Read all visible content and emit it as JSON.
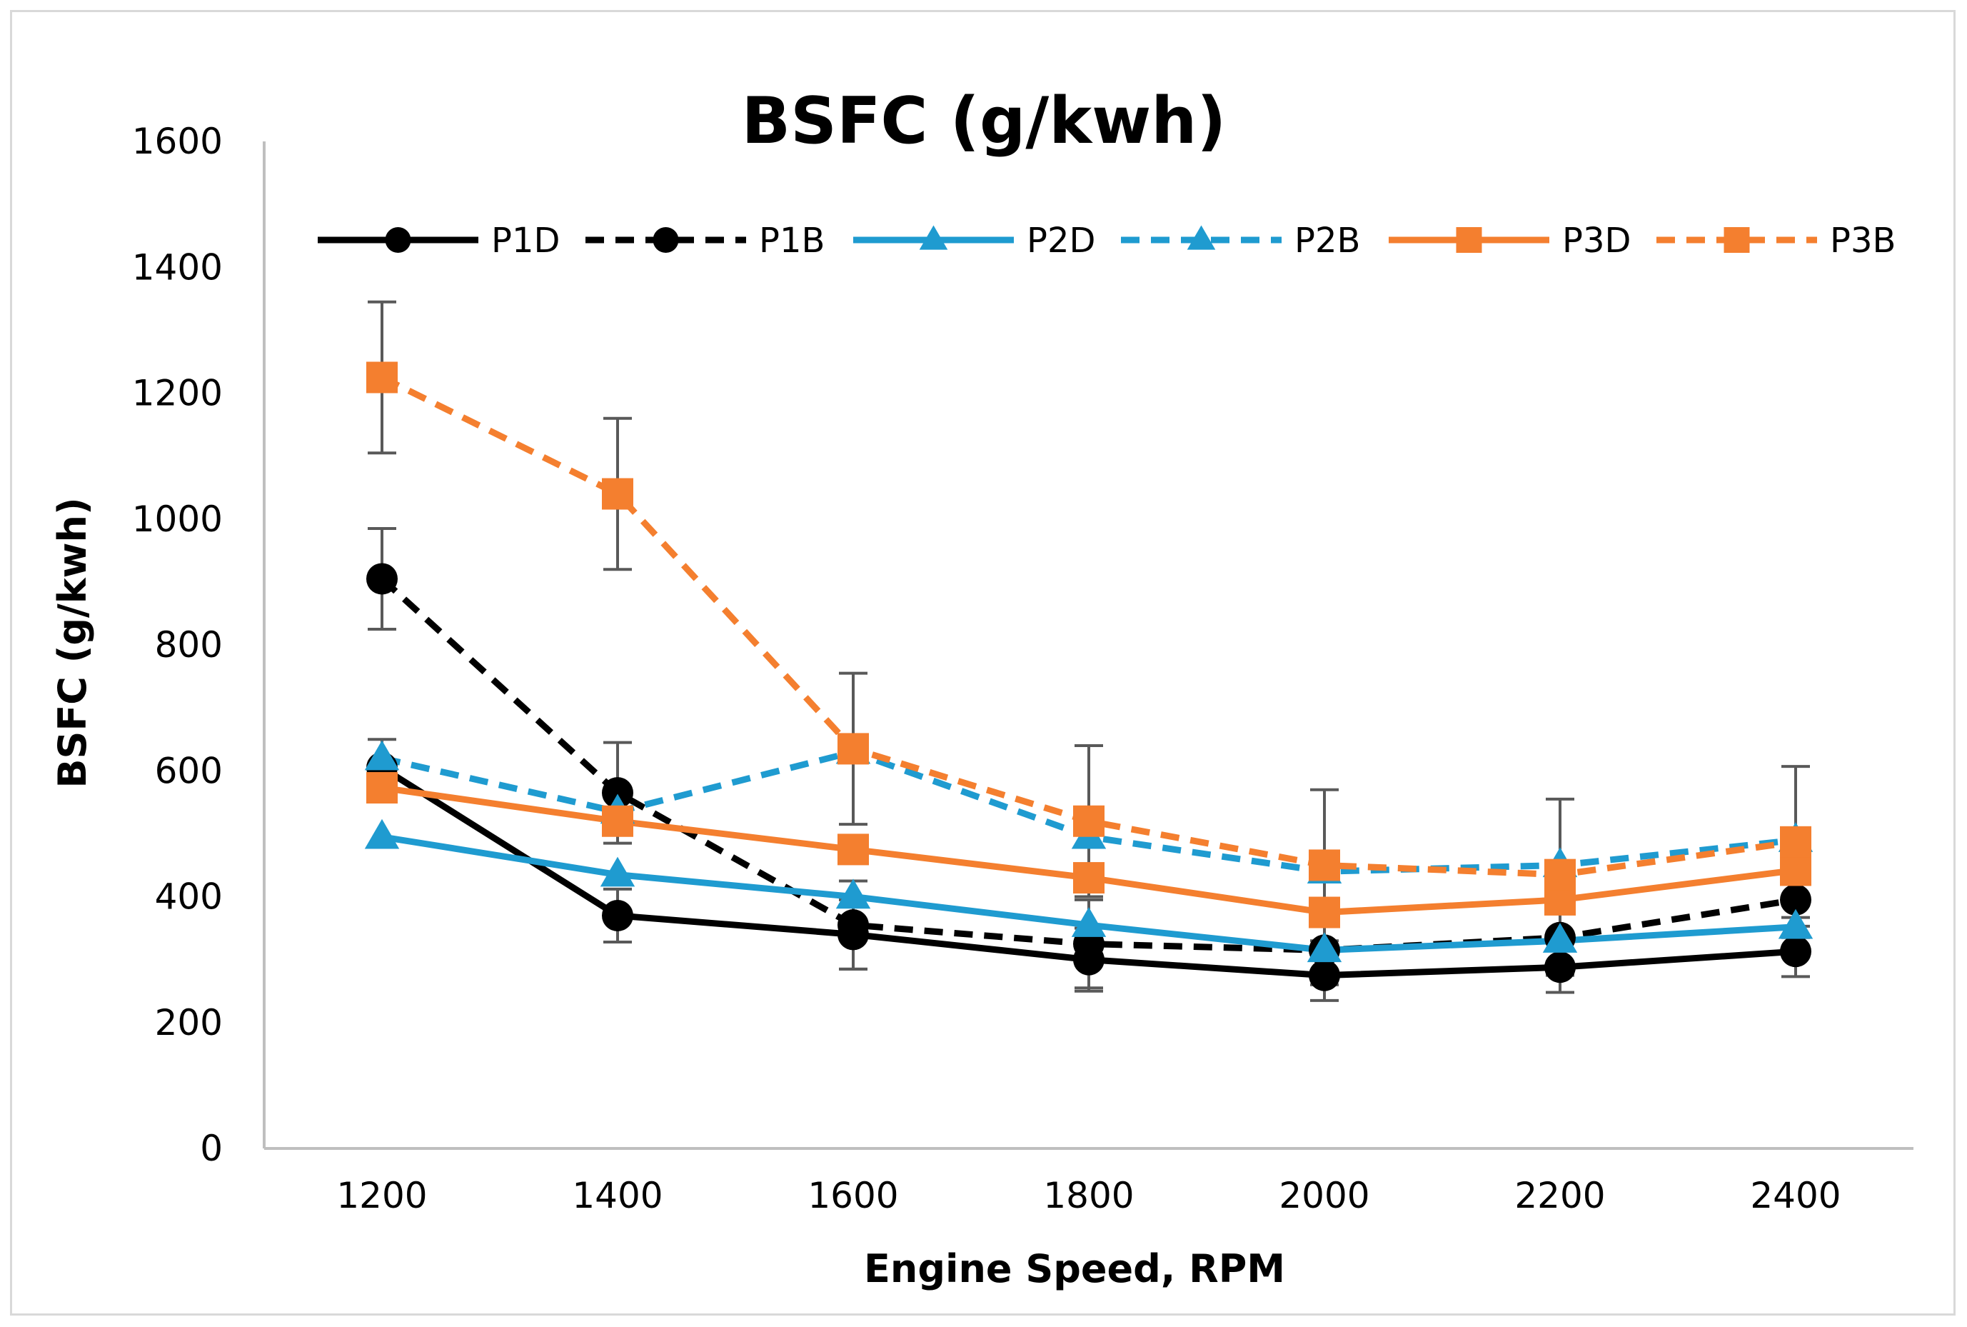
{
  "chart_data": {
    "type": "line",
    "title": "BSFC (g/kwh)",
    "xlabel": "Engine Speed, RPM",
    "ylabel": "BSFC (g/kwh)",
    "categories": [
      "1200",
      "1400",
      "1600",
      "1800",
      "2000",
      "2200",
      "2400"
    ],
    "ylim": [
      0,
      1600
    ],
    "yticks": [
      "0",
      "200",
      "400",
      "600",
      "800",
      "1000",
      "1200",
      "1400",
      "1600"
    ],
    "grid": false,
    "legend_position": "top",
    "series": [
      {
        "name": "P1D",
        "color": "#000000",
        "dash": "solid",
        "marker": "circle",
        "values": [
          605,
          370,
          340,
          300,
          275,
          288,
          313
        ],
        "errors": [
          45,
          42,
          55,
          50,
          40,
          40,
          40
        ]
      },
      {
        "name": "P1B",
        "color": "#000000",
        "dash": "dashed",
        "marker": "circle",
        "values": [
          905,
          565,
          355,
          325,
          315,
          335,
          395
        ],
        "errors": [
          80,
          80,
          70,
          70,
          55,
          60,
          60
        ]
      },
      {
        "name": "P2D",
        "color": "#1f9bd0",
        "dash": "solid",
        "marker": "triangle",
        "values": [
          495,
          435,
          400,
          355,
          315,
          330,
          352
        ],
        "errors": [
          0,
          0,
          0,
          0,
          0,
          0,
          0
        ]
      },
      {
        "name": "P2B",
        "color": "#1f9bd0",
        "dash": "dashed",
        "marker": "triangle",
        "values": [
          620,
          535,
          630,
          495,
          440,
          450,
          490
        ],
        "errors": [
          0,
          0,
          0,
          0,
          0,
          0,
          0
        ]
      },
      {
        "name": "P3D",
        "color": "#f47f2f",
        "dash": "solid",
        "marker": "square",
        "values": [
          573,
          520,
          475,
          430,
          375,
          395,
          442
        ],
        "errors": [
          0,
          0,
          0,
          0,
          0,
          0,
          0
        ]
      },
      {
        "name": "P3B",
        "color": "#f47f2f",
        "dash": "dashed",
        "marker": "square",
        "values": [
          1225,
          1040,
          635,
          520,
          450,
          435,
          487
        ],
        "errors": [
          120,
          120,
          120,
          120,
          120,
          120,
          120
        ]
      }
    ]
  }
}
